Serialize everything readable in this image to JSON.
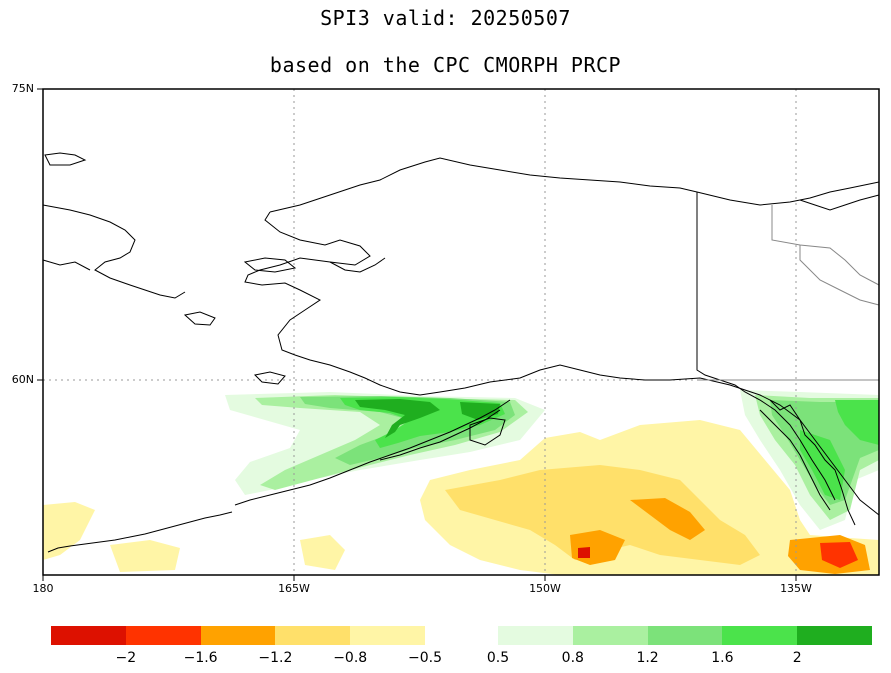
{
  "title": {
    "line1": "SPI3   valid: 20250507",
    "line2": "based on the CPC CMORPH PRCP"
  },
  "axes": {
    "x_ticks": [
      "180",
      "165W",
      "150W",
      "135W"
    ],
    "y_ticks": [
      "75N",
      "60N"
    ]
  },
  "colorbar": {
    "dry": [
      {
        "color": "#dd1100"
      },
      {
        "color": "#ff3300"
      },
      {
        "color": "#ffa200"
      },
      {
        "color": "#ffe06a"
      },
      {
        "color": "#fff5a6"
      }
    ],
    "wet": [
      {
        "color": "#e4fbe0"
      },
      {
        "color": "#aaf0a0"
      },
      {
        "color": "#7ce27a"
      },
      {
        "color": "#4be34b"
      },
      {
        "color": "#1fae1f"
      }
    ],
    "dry_labels": [
      "-2",
      "-1.6",
      "-1.2",
      "-0.8",
      "-0.5"
    ],
    "wet_labels": [
      "0.5",
      "0.8",
      "1.2",
      "1.6",
      "2"
    ]
  },
  "colors": {
    "frame": "#000000",
    "grid": "#999999",
    "border": "#888888"
  }
}
